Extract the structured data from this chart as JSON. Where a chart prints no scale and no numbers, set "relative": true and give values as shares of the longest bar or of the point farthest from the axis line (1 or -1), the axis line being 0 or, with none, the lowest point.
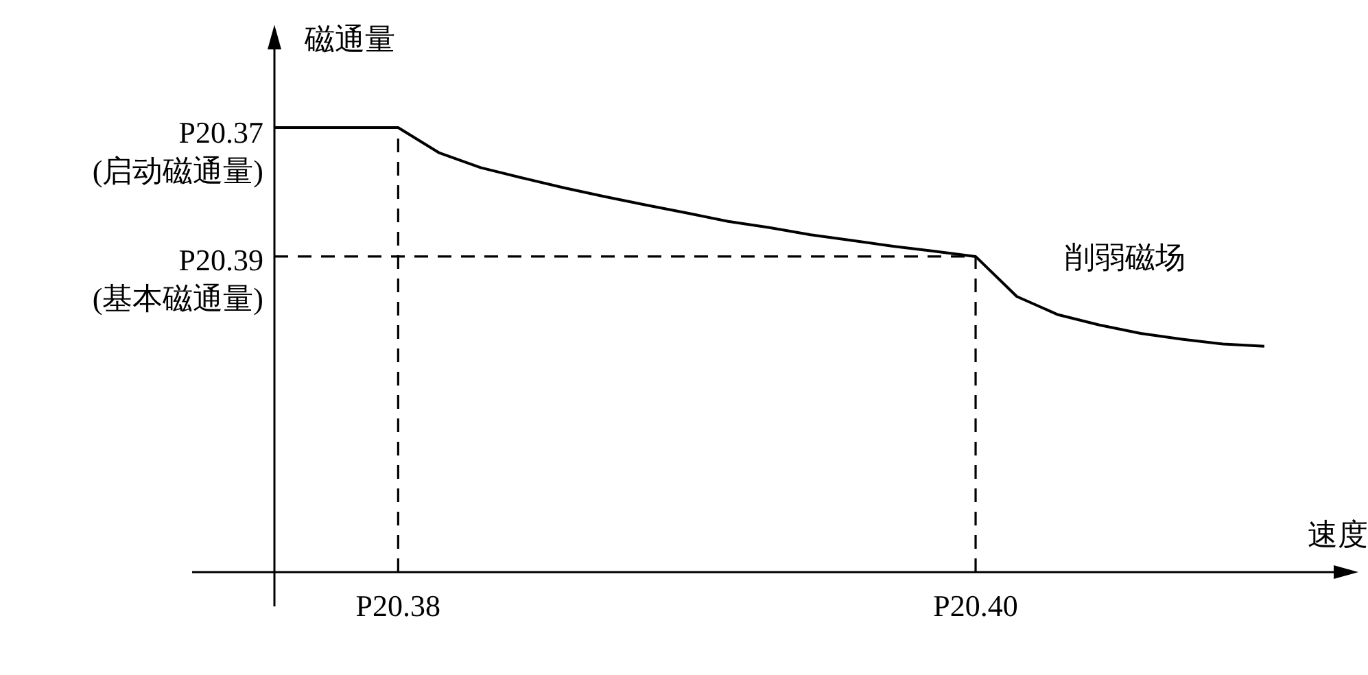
{
  "chart_data": {
    "type": "line",
    "relative": true,
    "xlabel": "速度",
    "ylabel": "磁通量",
    "categories": [
      null,
      null,
      null,
      "P20.38",
      null,
      null,
      null,
      null,
      null,
      null,
      null,
      null,
      null,
      null,
      null,
      null,
      null,
      "P20.40",
      null,
      null,
      null,
      null,
      null,
      null,
      null
    ],
    "series": [
      {
        "color": "#000000",
        "line_style": "solid",
        "values": [
          1.0,
          1.0,
          1.0,
          1.0,
          0.943,
          0.91,
          0.887,
          0.865,
          0.845,
          0.826,
          0.808,
          0.789,
          0.775,
          0.759,
          0.746,
          0.733,
          0.722,
          0.71,
          0.62,
          0.579,
          0.556,
          0.537,
          0.524,
          0.513,
          0.508
        ]
      },
      {
        "color": "#000000",
        "line_style": "dashed",
        "values": [
          0.71,
          0.71,
          0.71,
          0.71,
          0.71,
          0.71,
          0.71,
          0.71,
          0.71,
          0.71,
          0.71,
          0.71,
          0.71,
          0.71,
          0.71,
          0.71,
          0.71,
          0.71,
          null,
          null,
          null,
          null,
          null,
          null,
          null
        ]
      }
    ],
    "ref_lines": [
      {
        "axis": "x",
        "value": "P20.38",
        "line_style": "dashed",
        "color": "#000000"
      },
      {
        "axis": "x",
        "value": "P20.40",
        "line_style": "dashed",
        "color": "#000000"
      }
    ],
    "annotations": [
      "P20.37\n(启动磁通量)",
      "P20.39\n(基本磁通量)",
      "削弱磁场"
    ]
  }
}
